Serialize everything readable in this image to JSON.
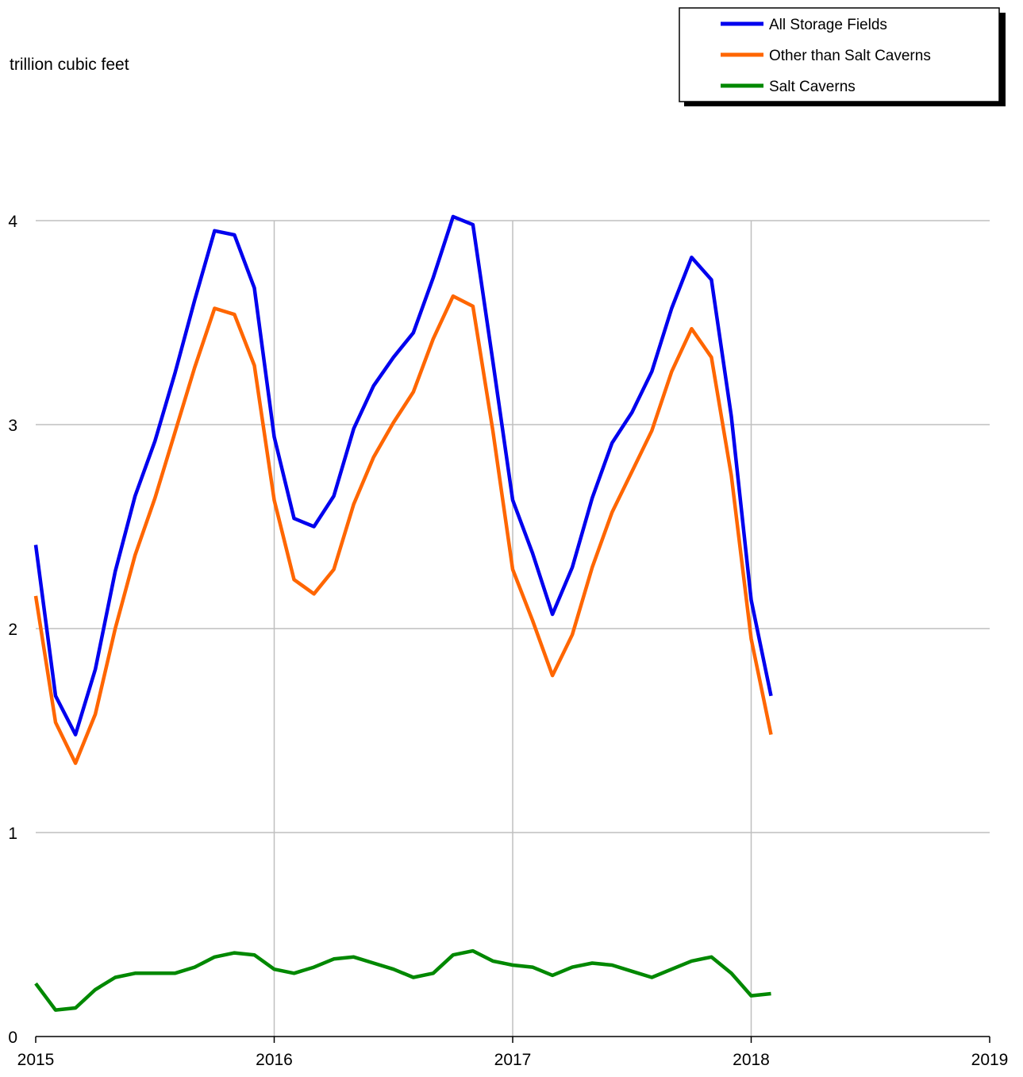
{
  "chart_data": {
    "type": "line",
    "unit_label": "trillion cubic feet",
    "x_ticks": [
      "2015",
      "2016",
      "2017",
      "2018",
      "2019"
    ],
    "y_ticks": [
      "0",
      "1",
      "2",
      "3",
      "4"
    ],
    "xlim": [
      2015,
      2019
    ],
    "ylim": [
      0,
      4
    ],
    "grid": true,
    "legend_position": "top-right",
    "x": [
      "2015-01",
      "2015-02",
      "2015-03",
      "2015-04",
      "2015-05",
      "2015-06",
      "2015-07",
      "2015-08",
      "2015-09",
      "2015-10",
      "2015-11",
      "2015-12",
      "2016-01",
      "2016-02",
      "2016-03",
      "2016-04",
      "2016-05",
      "2016-06",
      "2016-07",
      "2016-08",
      "2016-09",
      "2016-10",
      "2016-11",
      "2016-12",
      "2017-01",
      "2017-02",
      "2017-03",
      "2017-04",
      "2017-05",
      "2017-06",
      "2017-07",
      "2017-08",
      "2017-09",
      "2017-10",
      "2017-11",
      "2017-12",
      "2018-01",
      "2018-02"
    ],
    "series": [
      {
        "name": "All Storage Fields",
        "color": "#0000ee",
        "values": [
          2.41,
          1.67,
          1.48,
          1.8,
          2.28,
          2.65,
          2.92,
          3.25,
          3.61,
          3.95,
          3.93,
          3.67,
          2.94,
          2.54,
          2.5,
          2.65,
          2.98,
          3.19,
          3.33,
          3.45,
          3.72,
          4.02,
          3.98,
          3.31,
          2.63,
          2.37,
          2.07,
          2.3,
          2.64,
          2.91,
          3.06,
          3.26,
          3.57,
          3.82,
          3.71,
          3.04,
          2.14,
          1.67
        ]
      },
      {
        "name": "Other than Salt Caverns",
        "color": "#ff6600",
        "values": [
          2.16,
          1.54,
          1.34,
          1.58,
          2.0,
          2.36,
          2.64,
          2.96,
          3.28,
          3.57,
          3.54,
          3.29,
          2.63,
          2.24,
          2.17,
          2.29,
          2.61,
          2.84,
          3.01,
          3.16,
          3.42,
          3.63,
          3.58,
          2.97,
          2.29,
          2.04,
          1.77,
          1.97,
          2.3,
          2.57,
          2.77,
          2.97,
          3.26,
          3.47,
          3.33,
          2.75,
          1.95,
          1.48
        ]
      },
      {
        "name": "Salt Caverns",
        "color": "#008800",
        "values": [
          0.26,
          0.13,
          0.14,
          0.23,
          0.29,
          0.31,
          0.31,
          0.31,
          0.34,
          0.39,
          0.41,
          0.4,
          0.33,
          0.31,
          0.34,
          0.38,
          0.39,
          0.36,
          0.33,
          0.29,
          0.31,
          0.4,
          0.42,
          0.37,
          0.35,
          0.34,
          0.3,
          0.34,
          0.36,
          0.35,
          0.32,
          0.29,
          0.33,
          0.37,
          0.39,
          0.31,
          0.2,
          0.21
        ]
      }
    ]
  }
}
